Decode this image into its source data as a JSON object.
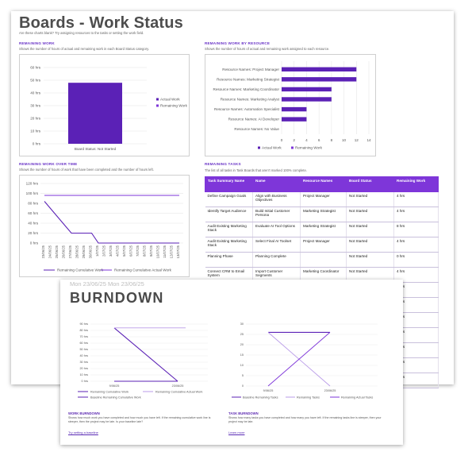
{
  "main": {
    "title": "Boards - Work Status",
    "subtitle": "Are these charts blank? Try assigning resources to the tasks or setting the work field.",
    "remaining_work": {
      "heading": "REMAINING WORK",
      "description": "Shows the number of hours of actual and remaining work in each Board Status category.",
      "legend": [
        "Actual Work",
        "Remaining Work"
      ]
    },
    "by_resource": {
      "heading": "REMAINING WORK BY RESOURCE",
      "description": "Shows the number of hours of actual and remaining work assigned to each resource.",
      "legend": [
        "Actual Work",
        "Remaining Work"
      ]
    },
    "over_time": {
      "heading": "REMAINING WORK OVER TIME",
      "description": "Shows the number of hours of work that have been completed and the number of hours left.",
      "legend": [
        "Remaining Cumulative Work",
        "Remaining Cumulative Actual Work"
      ]
    },
    "tasks": {
      "heading": "REMAINING TASKS",
      "description": "The list of all tasks in Task Boards that aren't marked 100% complete.",
      "columns": [
        "Task Summary Name",
        "Name",
        "Resource Names",
        "Board Status",
        "Remaining Work"
      ],
      "rows": [
        [
          "Define Campaign Goals",
          "Align with Business Objectives",
          "Project Manager",
          "Not Started",
          "4 hrs"
        ],
        [
          "Identify Target Audience",
          "Build Initial Customer Persona",
          "Marketing Strategist",
          "Not Started",
          "4 hrs"
        ],
        [
          "Audit Existing Marketing Stack",
          "Evaluate AI Tool Options",
          "Marketing Strategist",
          "Not Started",
          "8 hrs"
        ],
        [
          "Audit Existing Marketing Stack",
          "Select Final AI Toolset",
          "Project Manager",
          "Not Started",
          "4 hrs"
        ],
        [
          "Planning Phase",
          "Planning Complete",
          "",
          "Not Started",
          "0 hrs"
        ],
        [
          "Connect CRM to Email System",
          "Import Customer Segments",
          "Marketing Coordinator",
          "Not Started",
          "4 hrs"
        ],
        [
          "",
          "",
          "",
          "",
          "4 hrs"
        ],
        [
          "",
          "",
          "",
          "",
          "4 hrs"
        ],
        [
          "",
          "",
          "",
          "",
          "0 hrs"
        ],
        [
          "",
          "",
          "",
          "",
          "4 hrs"
        ],
        [
          "",
          "",
          "",
          "",
          "4 hrs"
        ],
        [
          "",
          "",
          "",
          "",
          "0 hrs"
        ],
        [
          "",
          "",
          "",
          "",
          "4 hrs"
        ]
      ]
    }
  },
  "burndown": {
    "faded_header": "Mon 23/06/25   Mon 23/06/25",
    "title": "BURNDOWN",
    "work": {
      "heading": "WORK BURNDOWN",
      "description": "Shows how much work you have completed and how much you have left. If the remaining cumulative work line is steeper, then the project may be late. Is your baseline late?",
      "link": "Try setting a baseline",
      "legend": [
        "Remaining Cumulative Work",
        "Remaining Cumulative Actual Work",
        "Baseline Remaining Cumulative Work"
      ]
    },
    "task": {
      "heading": "TASK BURNDOWN",
      "description": "Shows how many tasks you have completed and how many you have left. If the remaining tasks line is steeper, then your project may be late.",
      "link": "Learn more",
      "legend": [
        "Baseline Remaining Tasks",
        "Remaining Tasks",
        "Remaining Actual Tasks"
      ]
    }
  },
  "colors": {
    "purple_dark": "#5b21b6",
    "purple_mid": "#7e36d9",
    "purple_light": "#b99be8"
  },
  "chart_data": [
    {
      "type": "bar",
      "categories": [
        "Board Status: Not Started"
      ],
      "series": [
        {
          "name": "Actual Work",
          "values": [
            0
          ]
        },
        {
          "name": "Remaining Work",
          "values": [
            48
          ]
        }
      ],
      "yticks": [
        "0 hrs",
        "10 hrs",
        "20 hrs",
        "30 hrs",
        "40 hrs",
        "50 hrs",
        "60 hrs"
      ],
      "ylim": [
        0,
        60
      ],
      "legend": "right"
    },
    {
      "type": "bar",
      "orientation": "horizontal",
      "categories": [
        "Resource Names: Project Manager",
        "Resource Names: Marketing Strategist",
        "Resource Names: Marketing Coordinator",
        "Resource Names: Marketing Analyst",
        "Resource Names: Automation Specialist",
        "Resource Names: AI Developer",
        "Resource Names: No Value"
      ],
      "series": [
        {
          "name": "Actual Work",
          "values": [
            0,
            0,
            0,
            0,
            0,
            0,
            0
          ]
        },
        {
          "name": "Remaining Work",
          "values": [
            12,
            12,
            8,
            8,
            4,
            4,
            0
          ]
        }
      ],
      "xticks": [
        "0",
        "2",
        "4",
        "6",
        "8",
        "10",
        "12",
        "14"
      ],
      "xlim": [
        0,
        14
      ],
      "legend": "bottom"
    },
    {
      "type": "line",
      "x": [
        "23/06/25",
        "24/06/25",
        "25/06/25",
        "26/06/25",
        "27/06/25",
        "28/06/25",
        "29/06/25",
        "30/06/25",
        "1/07/25",
        "2/07/25",
        "3/07/25",
        "4/07/25",
        "5/07/25",
        "6/07/25",
        "7/07/25",
        "8/07/25",
        "9/07/25",
        "10/07/25",
        "11/07/25",
        "12/07/25",
        "13/07/25"
      ],
      "series": [
        {
          "name": "Remaining Cumulative Work",
          "values": [
            84,
            68,
            52,
            36,
            20,
            20,
            20,
            20,
            0,
            0,
            0,
            0,
            0,
            0,
            0,
            0,
            0,
            0,
            0,
            0,
            0
          ]
        },
        {
          "name": "Remaining Cumulative Actual Work",
          "values": [
            96,
            96,
            96,
            96,
            96,
            96,
            96,
            96,
            96,
            96,
            96,
            96,
            96,
            96,
            96,
            96,
            96,
            96,
            96,
            96,
            96
          ]
        }
      ],
      "yticks": [
        "0 hrs",
        "20 hrs",
        "40 hrs",
        "60 hrs",
        "80 hrs",
        "100 hrs",
        "120 hrs"
      ],
      "ylim": [
        0,
        120
      ],
      "legend": "bottom"
    },
    {
      "type": "line",
      "x": [
        "9/06/25",
        "23/06/25"
      ],
      "series": [
        {
          "name": "Remaining Cumulative Work",
          "values": [
            84,
            0
          ]
        },
        {
          "name": "Remaining Cumulative Actual Work",
          "values": [
            84,
            84
          ]
        },
        {
          "name": "Baseline Remaining Cumulative Work",
          "values": [
            0,
            0
          ]
        }
      ],
      "yticks": [
        "0 hrs",
        "10 hrs",
        "20 hrs",
        "30 hrs",
        "40 hrs",
        "50 hrs",
        "60 hrs",
        "70 hrs",
        "80 hrs",
        "90 hrs"
      ],
      "ylim": [
        0,
        90
      ],
      "legend": "bottom"
    },
    {
      "type": "line",
      "x": [
        "9/06/25",
        "23/06/25"
      ],
      "series": [
        {
          "name": "Baseline Remaining Tasks",
          "values": [
            26,
            26
          ]
        },
        {
          "name": "Remaining Tasks",
          "values": [
            26,
            0
          ]
        },
        {
          "name": "Remaining Actual Tasks",
          "values": [
            0,
            26
          ]
        }
      ],
      "yticks": [
        "0",
        "5",
        "10",
        "15",
        "20",
        "25",
        "30"
      ],
      "ylim": [
        0,
        30
      ],
      "legend": "bottom"
    }
  ]
}
